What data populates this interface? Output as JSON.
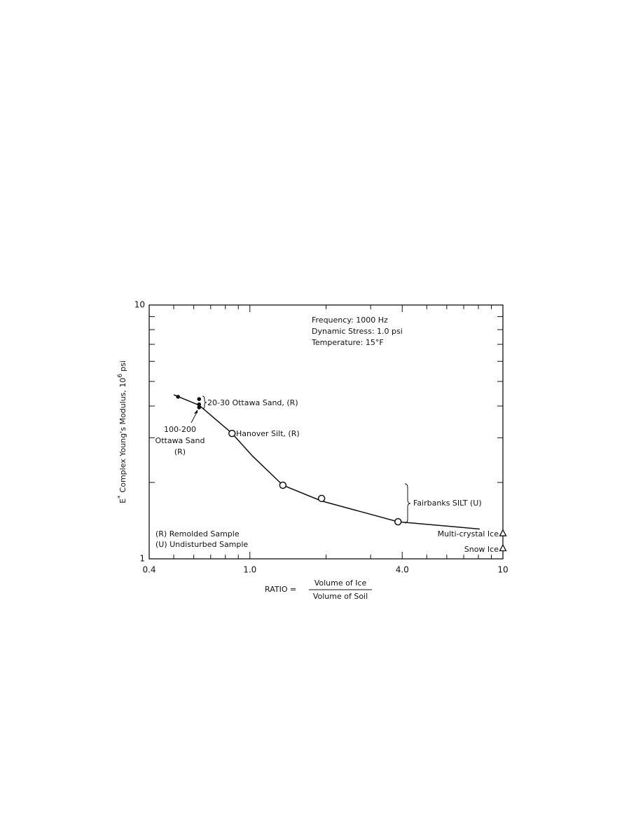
{
  "chart_data": {
    "type": "scatter",
    "xlog": true,
    "ylog": true,
    "xlim": [
      0.4,
      10
    ],
    "ylim": [
      1,
      10
    ],
    "xticks": [
      0.4,
      {
        "value": 1,
        "label": "1.0"
      },
      {
        "value": 4,
        "label": "4.0"
      },
      10
    ],
    "yticks": [
      1,
      10
    ],
    "xminorticks": [
      0.5,
      0.6,
      0.7,
      0.8,
      0.9,
      2,
      3,
      5,
      6,
      7,
      8,
      9
    ],
    "yminorticks": [
      2,
      3,
      4,
      5,
      6,
      7,
      8,
      9
    ],
    "ylabel": {
      "symbol": "E",
      "symbol_sup": "*",
      "text": "Complex Young's Modulus, 10",
      "exp": "6",
      "unit": "psi"
    },
    "xlabel": {
      "text": "RATIO =",
      "numerator": "Volume of Ice",
      "denominator": "Volume of Soil"
    },
    "annotations": [
      "Frequency: 1000 Hz",
      "Dynamic Stress: 1.0 psi",
      "Temperature: 15°F"
    ],
    "notes": [
      "(R) Remolded Sample",
      "(U) Undisturbed Sample"
    ],
    "curve": {
      "x": [
        0.5,
        0.63,
        0.85,
        1.02,
        1.35,
        1.92,
        3.85,
        8.1
      ],
      "values": [
        4.43,
        4.03,
        3.12,
        2.55,
        1.95,
        1.69,
        1.4,
        1.31
      ],
      "color": "#111"
    },
    "series": [
      {
        "name": "20-30 Ottawa Sand, (R)",
        "marker": "dot",
        "color": "#111",
        "x": [
          0.52,
          0.63,
          0.63
        ],
        "values": [
          4.35,
          4.26,
          4.06
        ]
      },
      {
        "name_lines": [
          "100-200",
          "Ottawa Sand",
          "(R)"
        ],
        "marker": "dot",
        "color": "#111",
        "x": [
          0.63
        ],
        "values": [
          3.95
        ]
      },
      {
        "name": "Hanover Silt, (R)",
        "marker": "circle",
        "color": "#111",
        "x": [
          0.85
        ],
        "values": [
          3.12
        ]
      },
      {
        "name": "Fairbanks SILT (U)",
        "marker": "circle",
        "color": "#111",
        "x": [
          1.35,
          1.92,
          3.85
        ],
        "values": [
          1.95,
          1.73,
          1.4
        ]
      },
      {
        "name": "Multi-crystal Ice",
        "marker": "triangle",
        "color": "#111",
        "x": [
          10
        ],
        "values": [
          1.26
        ]
      },
      {
        "name": "Snow Ice",
        "marker": "triangle",
        "color": "#111",
        "x": [
          10
        ],
        "values": [
          1.1
        ]
      }
    ]
  }
}
